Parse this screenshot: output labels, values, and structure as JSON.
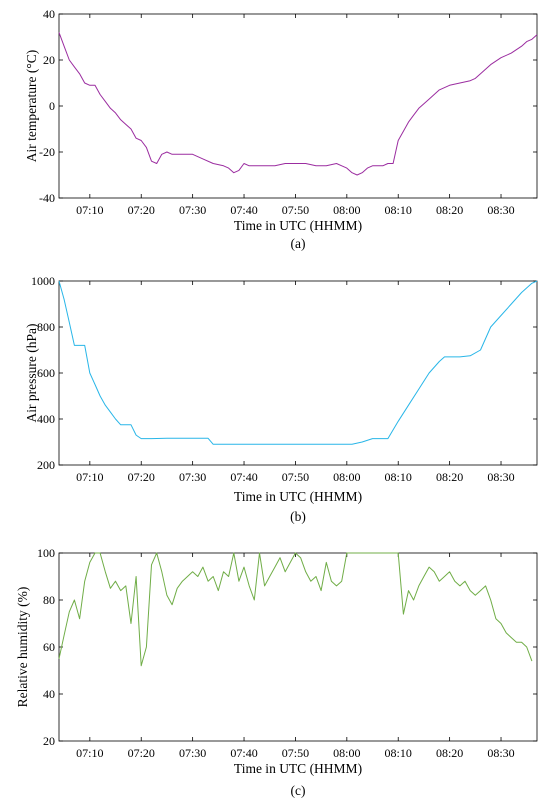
{
  "chart_data": [
    {
      "type": "line",
      "caption": "(a)",
      "xlabel": "Time in UTC (HHMM)",
      "ylabel": "Air temperature (°C)",
      "xlim": [
        "07:04",
        "08:37"
      ],
      "ylim": [
        -40,
        40
      ],
      "xticks": [
        "07:10",
        "07:20",
        "07:30",
        "07:40",
        "07:50",
        "08:00",
        "08:10",
        "08:20",
        "08:30"
      ],
      "yticks": [
        -40,
        -20,
        0,
        20,
        40
      ],
      "grid": false,
      "series": [
        {
          "color": "#9b2da0",
          "x": [
            "07:04",
            "07:05",
            "07:06",
            "07:07",
            "07:08",
            "07:09",
            "07:10",
            "07:11",
            "07:12",
            "07:13",
            "07:14",
            "07:15",
            "07:16",
            "07:17",
            "07:18",
            "07:19",
            "07:20",
            "07:21",
            "07:22",
            "07:23",
            "07:24",
            "07:25",
            "07:26",
            "07:28",
            "07:30",
            "07:32",
            "07:34",
            "07:36",
            "07:37",
            "07:38",
            "07:39",
            "07:40",
            "07:41",
            "07:42",
            "07:44",
            "07:46",
            "07:48",
            "07:50",
            "07:52",
            "07:54",
            "07:56",
            "07:58",
            "07:59",
            "08:00",
            "08:01",
            "08:02",
            "08:03",
            "08:04",
            "08:05",
            "08:06",
            "08:07",
            "08:08",
            "08:09",
            "08:10",
            "08:11",
            "08:12",
            "08:13",
            "08:14",
            "08:15",
            "08:16",
            "08:17",
            "08:18",
            "08:20",
            "08:22",
            "08:24",
            "08:25",
            "08:26",
            "08:28",
            "08:30",
            "08:32",
            "08:34",
            "08:35",
            "08:36",
            "08:37"
          ],
          "y": [
            32,
            26,
            20,
            17,
            14,
            10,
            9,
            9,
            5,
            2,
            -1,
            -3,
            -6,
            -8,
            -10,
            -14,
            -15,
            -18,
            -24,
            -25,
            -21,
            -20,
            -21,
            -21,
            -21,
            -23,
            -25,
            -26,
            -27,
            -29,
            -28,
            -25,
            -26,
            -26,
            -26,
            -26,
            -25,
            -25,
            -25,
            -26,
            -26,
            -25,
            -26,
            -27,
            -29,
            -30,
            -29,
            -27,
            -26,
            -26,
            -26,
            -25,
            -25,
            -15,
            -11,
            -7,
            -4,
            -1,
            1,
            3,
            5,
            7,
            9,
            10,
            11,
            12,
            14,
            18,
            21,
            23,
            26,
            28,
            29,
            31
          ]
        }
      ]
    },
    {
      "type": "line",
      "caption": "(b)",
      "xlabel": "Time in UTC (HHMM)",
      "ylabel": "Air pressure (hPa)",
      "xlim": [
        "07:04",
        "08:37"
      ],
      "ylim": [
        200,
        1000
      ],
      "xticks": [
        "07:10",
        "07:20",
        "07:30",
        "07:40",
        "07:50",
        "08:00",
        "08:10",
        "08:20",
        "08:30"
      ],
      "yticks": [
        200,
        400,
        600,
        800,
        1000
      ],
      "grid": false,
      "series": [
        {
          "color": "#29b6e8",
          "x": [
            "07:04",
            "07:05",
            "07:06",
            "07:07",
            "07:08",
            "07:09",
            "07:10",
            "07:11",
            "07:12",
            "07:13",
            "07:14",
            "07:15",
            "07:16",
            "07:17",
            "07:18",
            "07:19",
            "07:20",
            "07:21",
            "07:22",
            "07:25",
            "07:30",
            "07:33",
            "07:34",
            "07:40",
            "07:45",
            "07:50",
            "07:55",
            "08:00",
            "08:01",
            "08:03",
            "08:05",
            "08:07",
            "08:08",
            "08:10",
            "08:12",
            "08:14",
            "08:16",
            "08:18",
            "08:19",
            "08:20",
            "08:22",
            "08:24",
            "08:26",
            "08:28",
            "08:30",
            "08:32",
            "08:34",
            "08:36",
            "08:37"
          ],
          "y": [
            1000,
            920,
            820,
            720,
            720,
            720,
            600,
            550,
            500,
            460,
            430,
            400,
            375,
            375,
            375,
            330,
            315,
            315,
            315,
            316,
            316,
            316,
            290,
            290,
            290,
            290,
            290,
            290,
            290,
            300,
            315,
            315,
            315,
            390,
            460,
            530,
            600,
            650,
            670,
            670,
            670,
            675,
            700,
            800,
            850,
            900,
            950,
            990,
            1000
          ]
        }
      ]
    },
    {
      "type": "line",
      "caption": "(c)",
      "xlabel": "Time in UTC (HHMM)",
      "ylabel": "Relative humidity (%)",
      "xlim": [
        "07:04",
        "08:37"
      ],
      "ylim": [
        20,
        100
      ],
      "xticks": [
        "07:10",
        "07:20",
        "07:30",
        "07:40",
        "07:50",
        "08:00",
        "08:10",
        "08:20",
        "08:30"
      ],
      "yticks": [
        20,
        40,
        60,
        80,
        100
      ],
      "grid": false,
      "series": [
        {
          "color": "#70ad47",
          "x": [
            "07:04",
            "07:05",
            "07:06",
            "07:07",
            "07:08",
            "07:09",
            "07:10",
            "07:11",
            "07:12",
            "07:13",
            "07:14",
            "07:15",
            "07:16",
            "07:17",
            "07:18",
            "07:19",
            "07:20",
            "07:21",
            "07:22",
            "07:23",
            "07:24",
            "07:25",
            "07:26",
            "07:27",
            "07:28",
            "07:29",
            "07:30",
            "07:31",
            "07:32",
            "07:33",
            "07:34",
            "07:35",
            "07:36",
            "07:37",
            "07:38",
            "07:39",
            "07:40",
            "07:41",
            "07:42",
            "07:43",
            "07:44",
            "07:45",
            "07:46",
            "07:47",
            "07:48",
            "07:49",
            "07:50",
            "07:51",
            "07:52",
            "07:53",
            "07:54",
            "07:55",
            "07:56",
            "07:57",
            "07:58",
            "07:59",
            "08:00",
            "08:01",
            "08:02",
            "08:03",
            "08:04",
            "08:05",
            "08:06",
            "08:07",
            "08:08",
            "08:09",
            "08:10",
            "08:11",
            "08:12",
            "08:13",
            "08:14",
            "08:15",
            "08:16",
            "08:17",
            "08:18",
            "08:19",
            "08:20",
            "08:21",
            "08:22",
            "08:23",
            "08:24",
            "08:25",
            "08:26",
            "08:27",
            "08:28",
            "08:29",
            "08:30",
            "08:31",
            "08:32",
            "08:33",
            "08:34",
            "08:35",
            "08:36"
          ],
          "y": [
            55,
            65,
            75,
            80,
            72,
            88,
            96,
            100,
            100,
            92,
            85,
            88,
            84,
            86,
            70,
            90,
            52,
            60,
            95,
            100,
            92,
            82,
            78,
            85,
            88,
            90,
            92,
            90,
            94,
            88,
            90,
            84,
            92,
            90,
            100,
            88,
            94,
            86,
            80,
            100,
            86,
            90,
            94,
            98,
            92,
            96,
            100,
            98,
            92,
            88,
            90,
            84,
            96,
            88,
            86,
            88,
            100,
            100,
            100,
            100,
            100,
            100,
            100,
            100,
            100,
            100,
            100,
            74,
            84,
            80,
            86,
            90,
            94,
            92,
            88,
            90,
            92,
            88,
            86,
            88,
            84,
            82,
            84,
            86,
            80,
            72,
            70,
            66,
            64,
            62,
            62,
            60,
            54
          ]
        }
      ]
    }
  ]
}
